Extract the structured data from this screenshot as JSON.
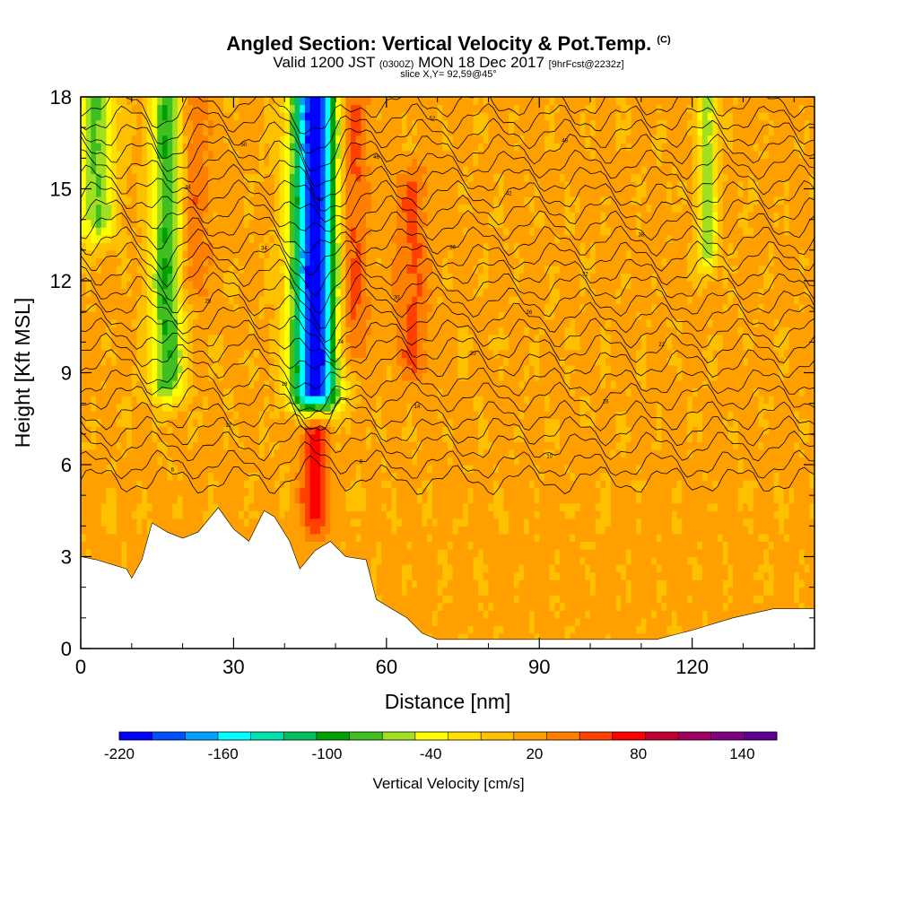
{
  "chart_data": {
    "type": "heatmap",
    "title": "Angled Section: Vertical Velocity & Pot.Temp.",
    "title_suffix": "(C)",
    "subtitle_main_a": "Valid 1200 JST",
    "subtitle_small_a": "(0300Z)",
    "subtitle_main_b": "MON 18 Dec 2017",
    "subtitle_small_b": "[9hrFcst@2232z]",
    "slice_label": "slice X,Y= 92,59@45°",
    "xlabel": "Distance [nm]",
    "ylabel": "Height [Kft MSL]",
    "xlim": [
      0,
      144
    ],
    "ylim": [
      0,
      18
    ],
    "x_ticks": [
      "0",
      "30",
      "60",
      "90",
      "120"
    ],
    "y_ticks": [
      "0",
      "3",
      "6",
      "9",
      "12",
      "15",
      "18"
    ],
    "colorbar": {
      "label": "Vertical Velocity [cm/s]",
      "range": [
        -220,
        160
      ],
      "tick_labels": [
        "-220",
        "-160",
        "-100",
        "-40",
        "20",
        "80",
        "140"
      ],
      "colors": [
        "#0000ff",
        "#0050ff",
        "#00a0ff",
        "#00ffff",
        "#00e0b0",
        "#00c060",
        "#00a000",
        "#40c020",
        "#a0e020",
        "#ffff00",
        "#ffe000",
        "#ffc000",
        "#ffa000",
        "#ff8000",
        "#ff4000",
        "#ff0000",
        "#c00030",
        "#a00060",
        "#800080",
        "#600090"
      ]
    },
    "vertical_velocity_features": [
      {
        "kind": "downdraft",
        "x_center": 46,
        "x_width": 7,
        "y_base": 8.5,
        "y_top": 18,
        "min_value": -220
      },
      {
        "kind": "downdraft",
        "x_center": 17,
        "x_width": 5,
        "y_base": 8.8,
        "y_top": 18,
        "min_value": -90
      },
      {
        "kind": "downdraft",
        "x_center": 3,
        "x_width": 6,
        "y_base": 14,
        "y_top": 18,
        "min_value": -70
      },
      {
        "kind": "downdraft",
        "x_center": 123,
        "x_width": 3,
        "y_base": 13,
        "y_top": 18,
        "min_value": -60
      },
      {
        "kind": "updraft",
        "x_center": 53,
        "x_width": 5,
        "y_base": 10,
        "y_top": 18,
        "max_value": 60
      },
      {
        "kind": "updraft",
        "x_center": 65,
        "x_width": 5,
        "y_base": 9.5,
        "y_top": 15,
        "max_value": 50
      },
      {
        "kind": "updraft",
        "x_center": 46,
        "x_width": 4,
        "y_base": 4.5,
        "y_top": 7,
        "max_value": 80
      },
      {
        "kind": "updraft",
        "x_center": 22,
        "x_width": 5,
        "y_base": 12,
        "y_top": 18,
        "max_value": 45
      }
    ],
    "terrain_profile": {
      "x": [
        0,
        3,
        9,
        10,
        12,
        14,
        17,
        20,
        23,
        27,
        30,
        33,
        36,
        38,
        41,
        43,
        46,
        49,
        52,
        56,
        58,
        61,
        64,
        67,
        70,
        76,
        91,
        95,
        100,
        113,
        120,
        128,
        136,
        144
      ],
      "height": [
        3,
        2.9,
        2.6,
        2.3,
        2.9,
        4.1,
        3.8,
        3.6,
        3.8,
        4.6,
        3.9,
        3.5,
        4.5,
        4.3,
        3.5,
        2.6,
        3.2,
        3.5,
        3.0,
        2.9,
        1.6,
        1.3,
        1.0,
        0.5,
        0.3,
        0.3,
        0.3,
        0.3,
        0.3,
        0.3,
        0.6,
        1.0,
        1.3,
        1.3
      ]
    },
    "isentropes": [
      {
        "label": "6",
        "base": 5.5
      },
      {
        "label": "8",
        "base": 6.0
      },
      {
        "label": "10",
        "base": 6.6
      },
      {
        "label": "12",
        "base": 7.1
      },
      {
        "label": "14",
        "base": 7.6
      },
      {
        "label": "16",
        "base": 8.2
      },
      {
        "label": "18",
        "base": 8.7
      },
      {
        "label": "20",
        "base": 9.3
      },
      {
        "label": "22",
        "base": 9.8
      },
      {
        "label": "24",
        "base": 10.3
      },
      {
        "label": "26",
        "base": 10.8
      },
      {
        "label": "28",
        "base": 11.3
      },
      {
        "label": "30",
        "base": 11.8
      },
      {
        "label": "32",
        "base": 12.3
      },
      {
        "label": "34",
        "base": 12.8
      },
      {
        "label": "36",
        "base": 13.3
      },
      {
        "label": "38",
        "base": 13.8
      },
      {
        "label": "40",
        "base": 14.3
      },
      {
        "label": "42",
        "base": 14.8
      },
      {
        "label": "44",
        "base": 15.3
      },
      {
        "label": "46",
        "base": 15.8
      },
      {
        "label": "48",
        "base": 16.3
      },
      {
        "label": "50",
        "base": 16.8
      },
      {
        "label": "52",
        "base": 17.3
      },
      {
        "label": "54",
        "base": 17.8
      }
    ]
  }
}
